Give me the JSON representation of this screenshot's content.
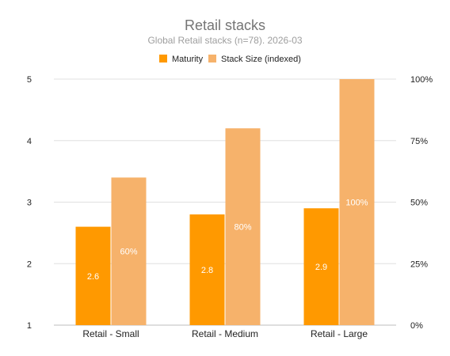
{
  "chart_data": {
    "type": "bar",
    "title": "Retail stacks",
    "subtitle": "Global Retail stacks (n=78). 2026-03",
    "categories": [
      "Retail - Small",
      "Retail - Medium",
      "Retail - Large"
    ],
    "series": [
      {
        "name": "Maturity",
        "axis": "left",
        "color": "#ff9900",
        "values": [
          2.6,
          2.8,
          2.9
        ],
        "labels": [
          "2.6",
          "2.8",
          "2.9"
        ]
      },
      {
        "name": "Stack Size (indexed)",
        "axis": "right",
        "color": "#f6b26b",
        "values": [
          60,
          80,
          100
        ],
        "labels": [
          "60%",
          "80%",
          "100%"
        ]
      }
    ],
    "y_left": {
      "min": 1,
      "max": 5,
      "ticks": [
        "1",
        "2",
        "3",
        "4",
        "5"
      ]
    },
    "y_right": {
      "min": 0,
      "max": 100,
      "ticks": [
        "0%",
        "25%",
        "50%",
        "75%",
        "100%"
      ]
    },
    "grid": true,
    "legend_position": "top"
  }
}
